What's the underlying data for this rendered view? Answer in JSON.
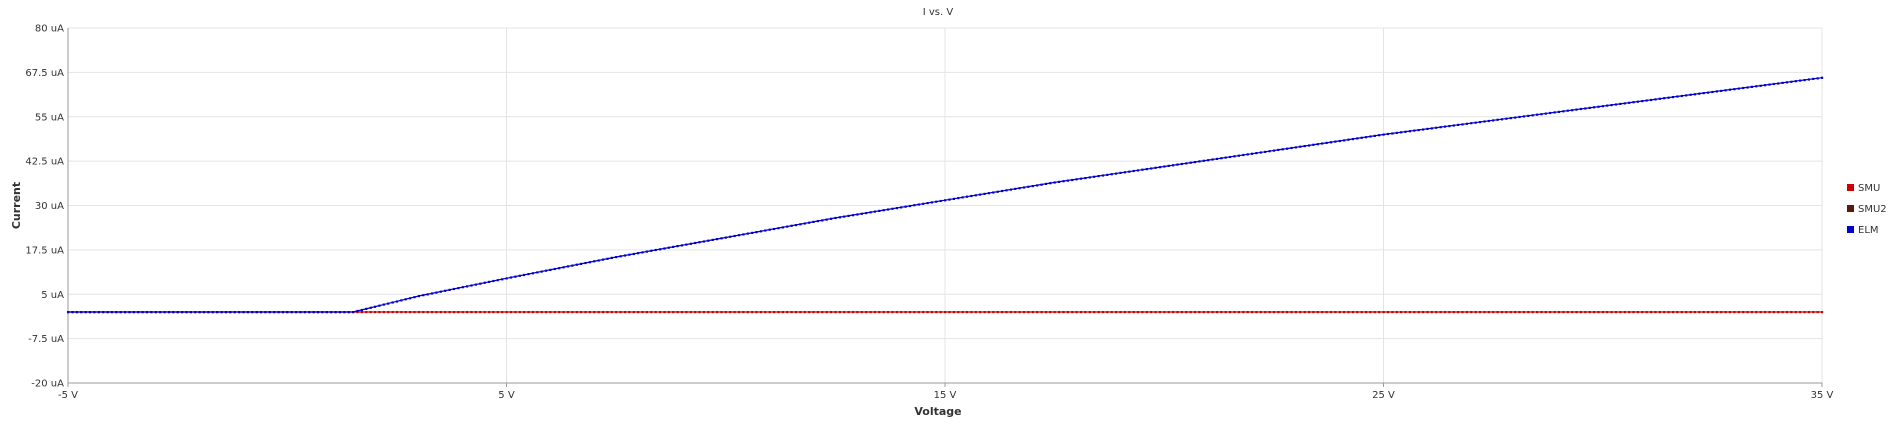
{
  "chart_data": {
    "type": "scatter",
    "title": "I vs. V",
    "xlabel": "Voltage",
    "ylabel": "Current",
    "xlim": [
      -5,
      35
    ],
    "ylim": [
      -20,
      80
    ],
    "x_ticks": [
      -5,
      5,
      15,
      25,
      35
    ],
    "x_tick_labels": [
      "-5 V",
      "5 V",
      "15 V",
      "25 V",
      "35 V"
    ],
    "y_ticks": [
      80,
      67.5,
      55,
      42.5,
      30,
      17.5,
      5,
      -7.5,
      -20
    ],
    "y_tick_labels": [
      "80 uA",
      "67.5 uA",
      "55 uA",
      "42.5 uA",
      "30 uA",
      "17.5 uA",
      "5 uA",
      "-7.5 uA",
      "-20 uA"
    ],
    "grid": true,
    "legend_position": "right",
    "series": [
      {
        "name": "SMU",
        "color": "#cc0000",
        "x": [
          -5,
          35
        ],
        "y": [
          0,
          0
        ]
      },
      {
        "name": "SMU2",
        "color": "#5a1a0a",
        "x": [],
        "y": []
      },
      {
        "name": "ELM",
        "color": "#0000cc",
        "x": [
          -5,
          0,
          1.5,
          3,
          5,
          7.5,
          10,
          12.5,
          15,
          17.5,
          20,
          22.5,
          25,
          27.5,
          30,
          32.5,
          35
        ],
        "y": [
          0,
          0,
          0,
          4.5,
          9.5,
          15.5,
          21,
          26.5,
          31.5,
          36.5,
          41,
          45.5,
          50,
          54,
          58,
          62,
          66
        ]
      }
    ]
  }
}
